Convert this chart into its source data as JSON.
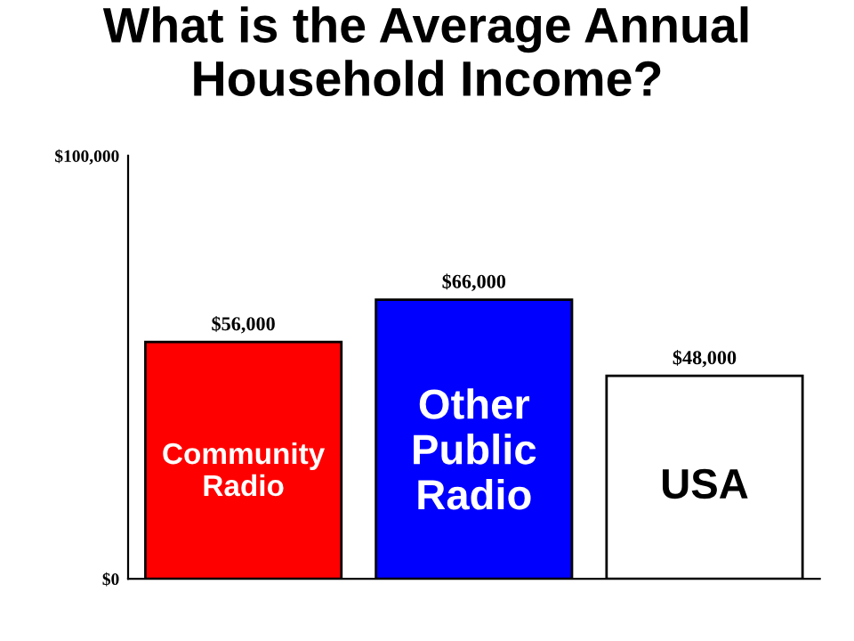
{
  "chart_data": {
    "type": "bar",
    "title": "What is the Average Annual Household Income?",
    "categories": [
      "Community Radio",
      "Other Public Radio",
      "USA"
    ],
    "values": [
      56000,
      66000,
      48000
    ],
    "colors": [
      "#ff0000",
      "#0000ff",
      "#ffffff"
    ],
    "value_labels": [
      "$56,000",
      "$66,000",
      "$48,000"
    ],
    "ylim": [
      0,
      100000
    ],
    "yticks": [
      {
        "value": 0,
        "label": "$0"
      },
      {
        "value": 100000,
        "label": "$100,000"
      }
    ],
    "grid": false,
    "legend": false
  }
}
